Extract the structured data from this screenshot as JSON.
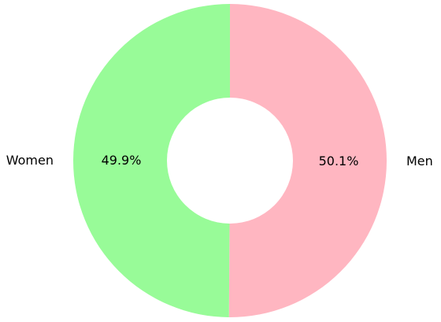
{
  "chart_data": {
    "type": "pie",
    "variant": "donut",
    "start": "top",
    "direction": "clockwise",
    "slices": [
      {
        "label": "Men",
        "value": 50.1,
        "value_label": "50.1%",
        "color": "#ffb6c1"
      },
      {
        "label": "Women",
        "value": 49.9,
        "value_label": "49.9%",
        "color": "#98fb98"
      }
    ],
    "legend": "none",
    "title": ""
  }
}
